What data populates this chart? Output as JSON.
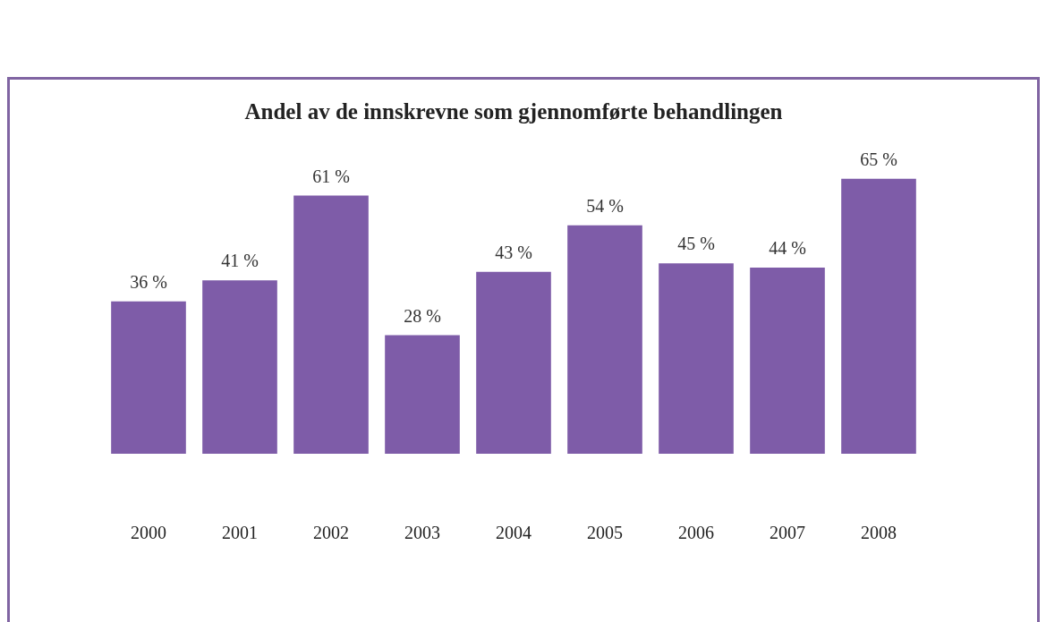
{
  "chart_data": {
    "type": "bar",
    "title": "Andel av de innskrevne som gjennomførte behandlingen",
    "categories": [
      "2000",
      "2001",
      "2002",
      "2003",
      "2004",
      "2005",
      "2006",
      "2007",
      "2008"
    ],
    "values": [
      36,
      41,
      61,
      28,
      43,
      54,
      45,
      44,
      65
    ],
    "value_labels": [
      "36 %",
      "41 %",
      "61 %",
      "28 %",
      "43 %",
      "54 %",
      "45 %",
      "44 %",
      "65 %"
    ],
    "color": "#7e5ca8"
  }
}
